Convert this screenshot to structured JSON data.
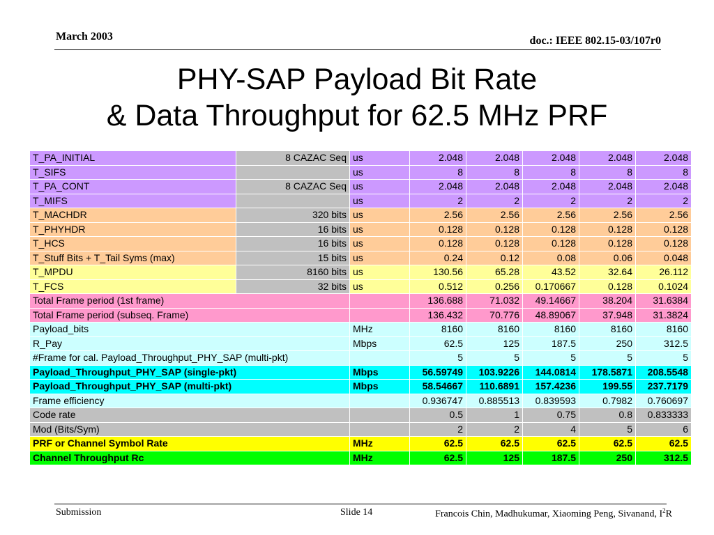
{
  "header": {
    "date": "March 2003",
    "doc": "doc.: IEEE 802.15-03/107r0"
  },
  "title": {
    "line1": "PHY-SAP Payload Bit Rate",
    "line2": "& Data Throughput for 62.5 MHz PRF"
  },
  "table": {
    "rows": [
      {
        "label": "T_PA_INITIAL",
        "bits": "8 CAZAC Seq",
        "unit": "us",
        "v": [
          "2.048",
          "2.048",
          "2.048",
          "2.048",
          "2.048"
        ]
      },
      {
        "label": "T_SIFS",
        "bits": "",
        "unit": "us",
        "v": [
          "8",
          "8",
          "8",
          "8",
          "8"
        ]
      },
      {
        "label": "T_PA_CONT",
        "bits": "8 CAZAC Seq",
        "unit": "us",
        "v": [
          "2.048",
          "2.048",
          "2.048",
          "2.048",
          "2.048"
        ]
      },
      {
        "label": "T_MIFS",
        "bits": "",
        "unit": "us",
        "v": [
          "2",
          "2",
          "2",
          "2",
          "2"
        ]
      },
      {
        "label": "T_MACHDR",
        "bits": "320 bits",
        "unit": "us",
        "v": [
          "2.56",
          "2.56",
          "2.56",
          "2.56",
          "2.56"
        ]
      },
      {
        "label": "T_PHYHDR",
        "bits": "16 bits",
        "unit": "us",
        "v": [
          "0.128",
          "0.128",
          "0.128",
          "0.128",
          "0.128"
        ]
      },
      {
        "label": "T_HCS",
        "bits": "16 bits",
        "unit": "us",
        "v": [
          "0.128",
          "0.128",
          "0.128",
          "0.128",
          "0.128"
        ]
      },
      {
        "label": "T_Stuff Bits + T_Tail Syms (max)",
        "bits": "15 bits",
        "unit": "us",
        "v": [
          "0.24",
          "0.12",
          "0.08",
          "0.06",
          "0.048"
        ]
      },
      {
        "label": "T_MPDU",
        "bits": "8160 bits",
        "unit": "us",
        "v": [
          "130.56",
          "65.28",
          "43.52",
          "32.64",
          "26.112"
        ]
      },
      {
        "label": "T_FCS",
        "bits": "32 bits",
        "unit": "us",
        "v": [
          "0.512",
          "0.256",
          "0.170667",
          "0.128",
          "0.1024"
        ]
      },
      {
        "label": "Total Frame period (1st frame)",
        "unit": "",
        "v": [
          "136.688",
          "71.032",
          "49.14667",
          "38.204",
          "31.6384"
        ]
      },
      {
        "label": "Total Frame period (subseq. Frame)",
        "unit": "",
        "v": [
          "136.432",
          "70.776",
          "48.89067",
          "37.948",
          "31.3824"
        ]
      },
      {
        "label": "Payload_bits",
        "unit": "MHz",
        "v": [
          "8160",
          "8160",
          "8160",
          "8160",
          "8160"
        ]
      },
      {
        "label": "R_Pay",
        "unit": "Mbps",
        "v": [
          "62.5",
          "125",
          "187.5",
          "250",
          "312.5"
        ]
      },
      {
        "label": "#Frame for cal. Payload_Throughput_PHY_SAP (multi-pkt)",
        "unit": "",
        "v": [
          "5",
          "5",
          "5",
          "5",
          "5"
        ]
      },
      {
        "label": "Payload_Throughput_PHY_SAP (single-pkt)",
        "unit": "Mbps",
        "v": [
          "56.59749",
          "103.9226",
          "144.0814",
          "178.5871",
          "208.5548"
        ]
      },
      {
        "label": "Payload_Throughput_PHY_SAP (multi-pkt)",
        "unit": "Mbps",
        "v": [
          "58.54667",
          "110.6891",
          "157.4236",
          "199.55",
          "237.7179"
        ]
      },
      {
        "label": "Frame efficiency",
        "unit": "",
        "v": [
          "0.936747",
          "0.885513",
          "0.839593",
          "0.7982",
          "0.760697"
        ]
      },
      {
        "label": "Code rate",
        "unit": "",
        "v": [
          "0.5",
          "1",
          "0.75",
          "0.8",
          "0.833333"
        ]
      },
      {
        "label": "Mod (Bits/Sym)",
        "unit": "",
        "v": [
          "2",
          "2",
          "4",
          "5",
          "6"
        ]
      },
      {
        "label": "PRF or Channel Symbol Rate",
        "unit": "MHz",
        "v": [
          "62.5",
          "62.5",
          "62.5",
          "62.5",
          "62.5"
        ]
      },
      {
        "label": "Channel Throughput Rc",
        "unit": "MHz",
        "v": [
          "62.5",
          "125",
          "187.5",
          "250",
          "312.5"
        ]
      }
    ]
  },
  "footer": {
    "left": "Submission",
    "slide": "Slide 14",
    "authors_main": "Francois Chin, Madhukumar, Xiaoming Peng, Sivanand, I",
    "authors_sup": "2",
    "authors_end": "R"
  }
}
